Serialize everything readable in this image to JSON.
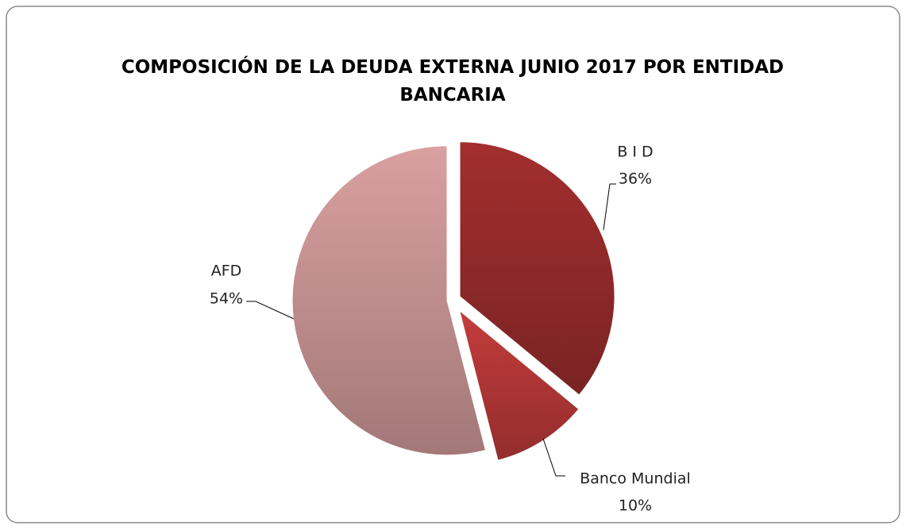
{
  "chart_data": {
    "type": "pie",
    "title": "COMPOSICIÓN DE LA DEUDA EXTERNA JUNIO 2017 POR ENTIDAD BANCARIA",
    "categories": [
      "B I D",
      "Banco Mundial",
      "AFD"
    ],
    "values": [
      36,
      10,
      54
    ],
    "value_labels": [
      "36%",
      "10%",
      "54%"
    ],
    "colors": [
      "#a32e2e",
      "#c43c3c",
      "#d9a0a0"
    ]
  }
}
